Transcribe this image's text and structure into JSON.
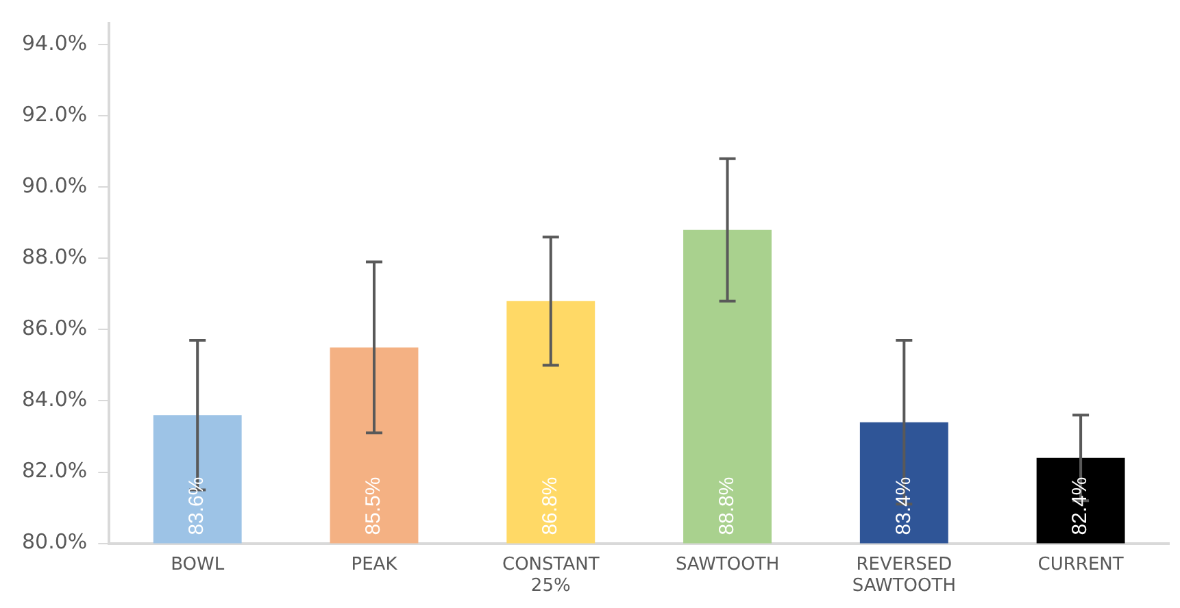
{
  "chart_data": {
    "type": "bar",
    "categories": [
      "BOWL",
      "PEAK",
      "CONSTANT 25%",
      "SAWTOOTH",
      "REVERSED SAWTOOTH",
      "CURRENT"
    ],
    "values": [
      83.6,
      85.5,
      86.8,
      88.8,
      83.4,
      82.4
    ],
    "colors": [
      "#9dc3e6",
      "#f4b183",
      "#ffd966",
      "#a9d18e",
      "#2f5597",
      "#000000"
    ],
    "errors": [
      2.1,
      2.4,
      1.8,
      2.0,
      2.3,
      1.2
    ],
    "value_labels": [
      "83.6%",
      "85.5%",
      "86.8%",
      "88.8%",
      "83.4%",
      "82.4%"
    ],
    "ylim": [
      80,
      94.6
    ],
    "yticks": [
      {
        "value": 80,
        "label": "80.0%"
      },
      {
        "value": 82,
        "label": "82.0%"
      },
      {
        "value": 84,
        "label": "84.0%"
      },
      {
        "value": 86,
        "label": "86.0%"
      },
      {
        "value": 88,
        "label": "88.0%"
      },
      {
        "value": 90,
        "label": "90.0%"
      },
      {
        "value": 92,
        "label": "92.0%"
      },
      {
        "value": 94,
        "label": "94.0%"
      }
    ],
    "grid": false,
    "legend": false
  }
}
